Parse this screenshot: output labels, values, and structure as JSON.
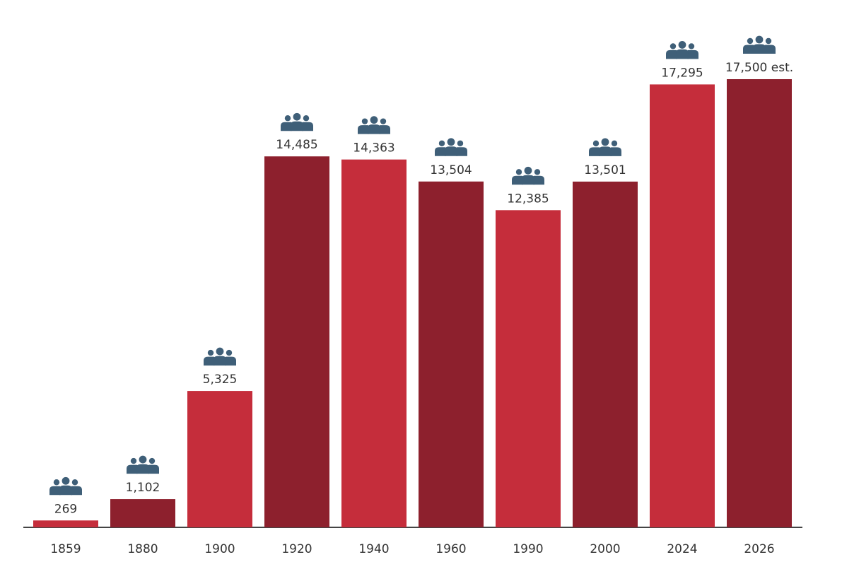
{
  "chart_data": {
    "type": "bar",
    "categories": [
      "1859",
      "1880",
      "1900",
      "1920",
      "1940",
      "1960",
      "1990",
      "2000",
      "2024",
      "2026"
    ],
    "values": [
      269,
      1102,
      5325,
      14485,
      14363,
      13504,
      12385,
      13501,
      17295,
      17500
    ],
    "data_labels": [
      "269",
      "1,102",
      "5,325",
      "14,485",
      "14,363",
      "13,504",
      "12,385",
      "13,501",
      "17,295",
      "17,500 est."
    ],
    "title": "",
    "xlabel": "",
    "ylabel": "",
    "ylim": [
      0,
      17500
    ],
    "grid": false,
    "legend": "none"
  },
  "colors": {
    "bar_light": "#c52d3b",
    "bar_dark": "#8d202d",
    "icon": "#3f5f78",
    "axis": "#444444",
    "label_text": "#333333"
  },
  "icons": {
    "label_icon": "people-group-icon"
  }
}
